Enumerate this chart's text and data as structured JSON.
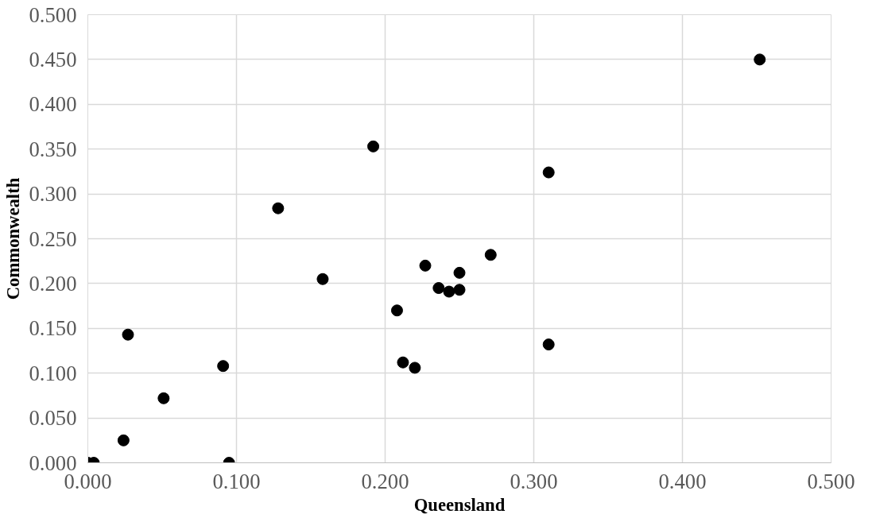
{
  "chart_data": {
    "type": "scatter",
    "xlabel": "Queensland",
    "ylabel": "Commonwealth",
    "x": [
      0.0,
      0.004,
      0.024,
      0.027,
      0.051,
      0.091,
      0.095,
      0.128,
      0.158,
      0.192,
      0.208,
      0.212,
      0.22,
      0.227,
      0.236,
      0.243,
      0.25,
      0.25,
      0.271,
      0.31,
      0.31,
      0.452
    ],
    "values": [
      0.0,
      0.0,
      0.025,
      0.143,
      0.072,
      0.108,
      0.0,
      0.284,
      0.205,
      0.353,
      0.17,
      0.112,
      0.106,
      0.22,
      0.195,
      0.191,
      0.212,
      0.193,
      0.232,
      0.324,
      0.132,
      0.45
    ],
    "color": "#000000",
    "marker": "circle",
    "xlim": [
      0,
      0.5
    ],
    "ylim": [
      0,
      0.5
    ],
    "xticks": [
      {
        "value": 0,
        "label": "0.000"
      },
      {
        "value": 0.1,
        "label": "0.100"
      },
      {
        "value": 0.2,
        "label": "0.200"
      },
      {
        "value": 0.3,
        "label": "0.300"
      },
      {
        "value": 0.4,
        "label": "0.400"
      },
      {
        "value": 0.5,
        "label": "0.500"
      }
    ],
    "yticks": [
      {
        "value": 0,
        "label": "0.000"
      },
      {
        "value": 0.05,
        "label": "0.050"
      },
      {
        "value": 0.1,
        "label": "0.100"
      },
      {
        "value": 0.15,
        "label": "0.150"
      },
      {
        "value": 0.2,
        "label": "0.200"
      },
      {
        "value": 0.25,
        "label": "0.250"
      },
      {
        "value": 0.3,
        "label": "0.300"
      },
      {
        "value": 0.35,
        "label": "0.350"
      },
      {
        "value": 0.4,
        "label": "0.400"
      },
      {
        "value": 0.45,
        "label": "0.450"
      },
      {
        "value": 0.5,
        "label": "0.500"
      }
    ],
    "grid": true
  }
}
